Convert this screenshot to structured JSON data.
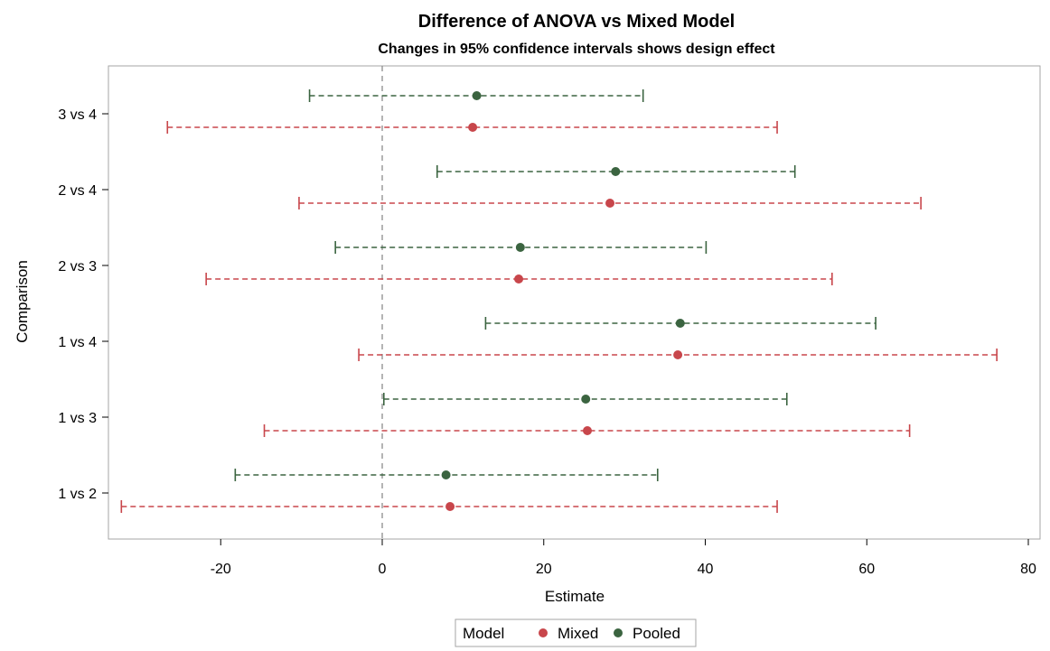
{
  "chart_data": {
    "type": "interval",
    "title": "Difference of ANOVA vs Mixed Model",
    "subtitle": "Changes in 95% confidence intervals shows design effect",
    "xlabel": "Estimate",
    "ylabel": "Comparison",
    "xlim": [
      -34,
      81
    ],
    "x_ticks": [
      -20,
      0,
      20,
      40,
      60,
      80
    ],
    "reference_line_x": 0,
    "categories": [
      "3 vs 4",
      "2 vs 4",
      "2 vs 3",
      "1 vs 4",
      "1 vs 3",
      "1 vs 2"
    ],
    "legend": {
      "title": "Model",
      "placement": "bottom-center"
    },
    "series": [
      {
        "name": "Mixed",
        "color": "#c8464b",
        "estimate": [
          11.2,
          28.2,
          16.9,
          36.6,
          25.4,
          8.4
        ],
        "lower": [
          -26.6,
          -10.3,
          -21.8,
          -2.9,
          -14.6,
          -32.3
        ],
        "upper": [
          48.9,
          66.7,
          55.7,
          76.1,
          65.3,
          48.9
        ]
      },
      {
        "name": "Pooled",
        "color": "#3b6440",
        "estimate": [
          11.7,
          28.9,
          17.1,
          36.9,
          25.2,
          7.9
        ],
        "lower": [
          -9.0,
          6.8,
          -5.8,
          12.8,
          0.2,
          -18.2
        ],
        "upper": [
          32.3,
          51.1,
          40.1,
          61.1,
          50.1,
          34.1
        ]
      }
    ]
  }
}
